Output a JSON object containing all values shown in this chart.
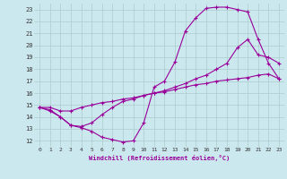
{
  "xlabel": "Windchill (Refroidissement éolien,°C)",
  "bg_color": "#cce8ef",
  "grid_color": "#aacccc",
  "line_color": "#990099",
  "xlim": [
    -0.5,
    23.5
  ],
  "ylim": [
    11.5,
    23.5
  ],
  "xticks": [
    0,
    1,
    2,
    3,
    4,
    5,
    6,
    7,
    8,
    9,
    10,
    11,
    12,
    13,
    14,
    15,
    16,
    17,
    18,
    19,
    20,
    21,
    22,
    23
  ],
  "yticks": [
    12,
    13,
    14,
    15,
    16,
    17,
    18,
    19,
    20,
    21,
    22,
    23
  ],
  "line1_x": [
    0,
    1,
    2,
    3,
    4,
    5,
    6,
    7,
    8,
    9,
    10,
    11,
    12,
    13,
    14,
    15,
    16,
    17,
    18,
    19,
    20,
    21,
    22,
    23
  ],
  "line1_y": [
    14.8,
    14.6,
    14.0,
    13.3,
    13.1,
    12.8,
    12.3,
    12.1,
    11.9,
    12.0,
    13.5,
    16.5,
    17.0,
    18.6,
    21.2,
    22.3,
    23.1,
    23.2,
    23.2,
    23.0,
    22.8,
    20.5,
    18.5,
    17.2
  ],
  "line2_x": [
    0,
    1,
    2,
    3,
    4,
    5,
    6,
    7,
    8,
    9,
    10,
    11,
    12,
    13,
    14,
    15,
    16,
    17,
    18,
    19,
    20,
    21,
    22,
    23
  ],
  "line2_y": [
    14.8,
    14.5,
    14.0,
    13.3,
    13.2,
    13.5,
    14.2,
    14.8,
    15.3,
    15.5,
    15.8,
    16.0,
    16.2,
    16.5,
    16.8,
    17.2,
    17.5,
    18.0,
    18.5,
    19.8,
    20.5,
    19.2,
    19.0,
    18.5
  ],
  "line3_x": [
    0,
    1,
    2,
    3,
    4,
    5,
    6,
    7,
    8,
    9,
    10,
    11,
    12,
    13,
    14,
    15,
    16,
    17,
    18,
    19,
    20,
    21,
    22,
    23
  ],
  "line3_y": [
    14.8,
    14.8,
    14.5,
    14.5,
    14.8,
    15.0,
    15.2,
    15.3,
    15.5,
    15.6,
    15.8,
    16.0,
    16.1,
    16.3,
    16.5,
    16.7,
    16.8,
    17.0,
    17.1,
    17.2,
    17.3,
    17.5,
    17.6,
    17.2
  ]
}
